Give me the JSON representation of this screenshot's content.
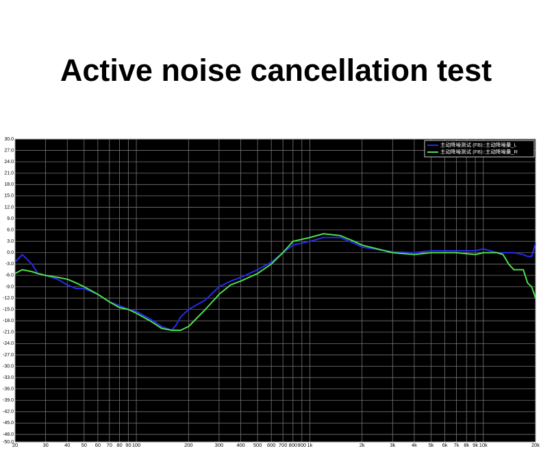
{
  "chart_data": {
    "type": "line",
    "title": "Active noise cancellation test",
    "xscale": "log",
    "grid": true,
    "legend": "upper right",
    "xlim": [
      20,
      20000
    ],
    "ylim": [
      -50,
      30
    ],
    "xticks": [
      20,
      30,
      40,
      50,
      60,
      70,
      80,
      90,
      100,
      200,
      300,
      400,
      500,
      600,
      700,
      800,
      900,
      {
        "value": 1000,
        "label": "1k"
      },
      {
        "value": 2000,
        "label": "2k"
      },
      {
        "value": 3000,
        "label": "3k"
      },
      {
        "value": 4000,
        "label": "4k"
      },
      {
        "value": 5000,
        "label": "5k"
      },
      {
        "value": 6000,
        "label": "6k"
      },
      {
        "value": 7000,
        "label": "7k"
      },
      {
        "value": 8000,
        "label": "8k"
      },
      {
        "value": 9000,
        "label": "9k"
      },
      {
        "value": 10000,
        "label": "10k"
      },
      {
        "value": 20000,
        "label": "20k"
      }
    ],
    "yticks": [
      {
        "value": 30,
        "label": "30.0"
      },
      {
        "value": 27,
        "label": "27.0"
      },
      {
        "value": 24,
        "label": "24.0"
      },
      {
        "value": 21,
        "label": "21.0"
      },
      {
        "value": 18,
        "label": "18.0"
      },
      {
        "value": 15,
        "label": "15.0"
      },
      {
        "value": 12,
        "label": "12.0"
      },
      {
        "value": 9,
        "label": "9.0"
      },
      {
        "value": 6,
        "label": "6.0"
      },
      {
        "value": 3,
        "label": "3.0"
      },
      {
        "value": 0,
        "label": "0.0"
      },
      {
        "value": -3,
        "label": "-3.0"
      },
      {
        "value": -6,
        "label": "-6.0"
      },
      {
        "value": -9,
        "label": "-9.0"
      },
      {
        "value": -12,
        "label": "-12.0"
      },
      {
        "value": -15,
        "label": "-15.0"
      },
      {
        "value": -18,
        "label": "-18.0"
      },
      {
        "value": -21,
        "label": "-21.0"
      },
      {
        "value": -24,
        "label": "-24.0"
      },
      {
        "value": -27,
        "label": "-27.0"
      },
      {
        "value": -30,
        "label": "-30.0"
      },
      {
        "value": -33,
        "label": "-33.0"
      },
      {
        "value": -36,
        "label": "-36.0"
      },
      {
        "value": -39,
        "label": "-39.0"
      },
      {
        "value": -42,
        "label": "-42.0"
      },
      {
        "value": -45,
        "label": "-45.0"
      },
      {
        "value": -48,
        "label": "-48.0"
      },
      {
        "value": -50,
        "label": "-50.0"
      }
    ],
    "x": [
      20,
      22,
      25,
      27,
      30,
      35,
      40,
      45,
      50,
      60,
      70,
      80,
      90,
      100,
      120,
      140,
      160,
      170,
      180,
      200,
      250,
      300,
      350,
      400,
      500,
      600,
      700,
      800,
      1000,
      1200,
      1500,
      1800,
      2000,
      3000,
      4000,
      5000,
      7000,
      9000,
      10000,
      12000,
      13000,
      14000,
      15000,
      17000,
      18000,
      19000,
      20000
    ],
    "series": [
      {
        "name": "主动降噪测试 (FB)::主动降噪量_L",
        "color": "#2a2af0",
        "values": [
          -2.5,
          -0.5,
          -3,
          -5.5,
          -6,
          -7,
          -8.5,
          -9.5,
          -9.5,
          -11,
          -13,
          -14,
          -15,
          -15.5,
          -17.5,
          -19.5,
          -20.5,
          -19,
          -17,
          -15,
          -12.5,
          -9,
          -7.5,
          -6.5,
          -4.5,
          -2.5,
          0,
          2,
          3,
          4,
          4,
          2.5,
          1.5,
          0.2,
          0,
          0.5,
          0.5,
          0.5,
          1,
          0,
          0,
          0,
          0,
          -0.5,
          -1,
          -1,
          2.5
        ]
      },
      {
        "name": "主动降噪测试 (FB)::主动降噪量_R",
        "color": "#4ee04e",
        "values": [
          -5.5,
          -4.5,
          -5,
          -5.5,
          -6,
          -6.5,
          -7,
          -8,
          -9,
          -11,
          -13,
          -14.5,
          -15,
          -16,
          -18,
          -20,
          -20.5,
          -20.5,
          -20.5,
          -19.5,
          -15,
          -11,
          -8.5,
          -7.5,
          -5.5,
          -3,
          0,
          3,
          4,
          5,
          4.5,
          3,
          2,
          0,
          -0.5,
          0,
          0,
          -0.5,
          0,
          0,
          -0.5,
          -3,
          -4.5,
          -4.5,
          -8,
          -9,
          -12
        ]
      }
    ]
  }
}
